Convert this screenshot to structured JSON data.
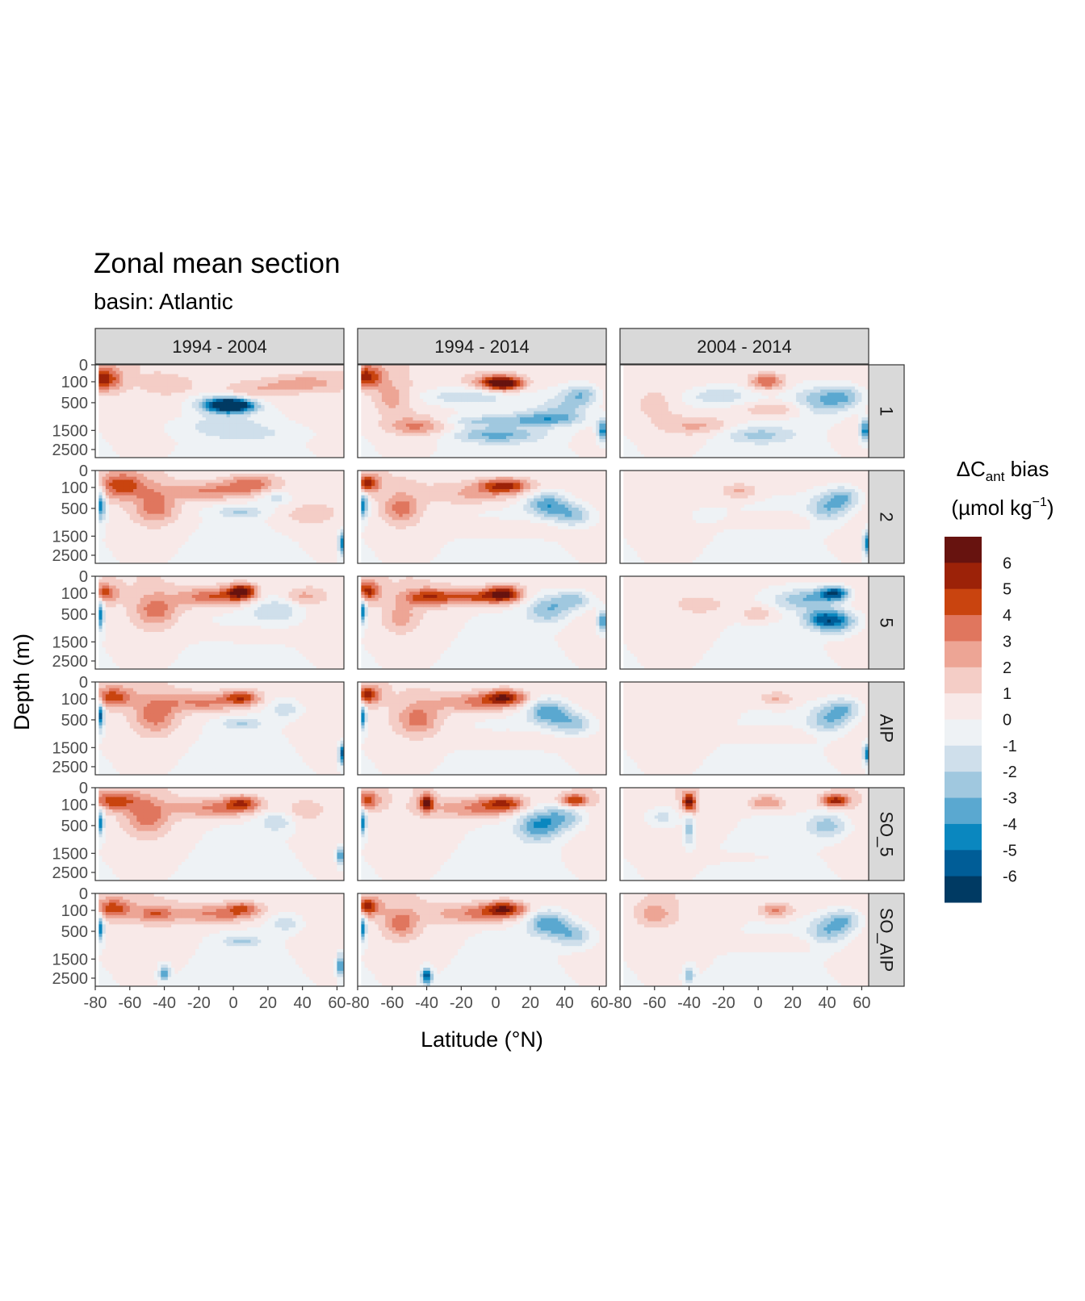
{
  "title": "Zonal mean section",
  "subtitle": "basin: Atlantic",
  "chart_data": {
    "type": "heatmap",
    "description_of_layout": "faceted grid: columns = period, rows = configuration",
    "columns": [
      "1994 - 2004",
      "1994 - 2014",
      "2004 - 2014"
    ],
    "rows": [
      "1",
      "2",
      "5",
      "AIP",
      "SO_5",
      "SO_AIP"
    ],
    "xlabel": "Latitude (°N)",
    "ylabel": "Depth (m)",
    "x_ticks": [
      -80,
      -60,
      -40,
      -20,
      0,
      20,
      40,
      60
    ],
    "xlim": [
      -80,
      64
    ],
    "y_ticks": [
      0,
      100,
      500,
      1500,
      2500
    ],
    "y_scale": "sqrt",
    "y_reversed": true,
    "ylim": [
      0,
      3000
    ],
    "legend": {
      "title_main": "ΔC",
      "title_sub": "ant",
      "title_suffix": " bias",
      "unit_pre": "(µmol kg",
      "unit_sup": "−1",
      "unit_post": ")",
      "position": "right",
      "labels": [
        "6",
        "5",
        "4",
        "3",
        "2",
        "1",
        "0",
        "-1",
        "-2",
        "-3",
        "-4",
        "-5",
        "-6"
      ],
      "colors": [
        "#67130f",
        "#9c2208",
        "#c9440f",
        "#e0765e",
        "#eda595",
        "#f4cdc6",
        "#f8e9e8",
        "#eef2f5",
        "#cfdfeb",
        "#a0c8df",
        "#5aa8d0",
        "#0a87bf",
        "#005d97",
        "#003a63"
      ]
    },
    "features": [
      {
        "col": 0,
        "row": 0,
        "blobs": [
          [
            -75,
            70,
            10,
            120,
            5
          ],
          [
            -5,
            550,
            16,
            200,
            -5
          ],
          [
            0,
            580,
            12,
            110,
            -6
          ],
          [
            10,
            250,
            20,
            200,
            2
          ],
          [
            40,
            120,
            20,
            80,
            2
          ],
          [
            -35,
            150,
            15,
            120,
            1
          ],
          [
            5,
            1600,
            35,
            250,
            -1
          ],
          [
            -10,
            1200,
            25,
            200,
            -1
          ]
        ]
      },
      {
        "col": 1,
        "row": 0,
        "blobs": [
          [
            -75,
            50,
            10,
            100,
            5
          ],
          [
            0,
            100,
            15,
            80,
            4
          ],
          [
            5,
            130,
            10,
            60,
            5
          ],
          [
            -20,
            350,
            25,
            150,
            -2
          ],
          [
            0,
            1700,
            25,
            250,
            -3
          ],
          [
            -60,
            400,
            10,
            400,
            2
          ],
          [
            -45,
            1300,
            18,
            300,
            3
          ],
          [
            -5,
            1100,
            30,
            100,
            -2
          ],
          [
            40,
            600,
            15,
            400,
            -2
          ],
          [
            50,
            300,
            10,
            200,
            -3
          ],
          [
            62,
            1500,
            3,
            400,
            -5
          ],
          [
            30,
            1000,
            20,
            200,
            -3
          ]
        ]
      },
      {
        "col": 2,
        "row": 0,
        "blobs": [
          [
            5,
            100,
            10,
            80,
            4
          ],
          [
            10,
            700,
            25,
            200,
            2
          ],
          [
            -35,
            1300,
            20,
            300,
            2
          ],
          [
            -60,
            600,
            10,
            400,
            1
          ],
          [
            -25,
            350,
            20,
            200,
            -2
          ],
          [
            35,
            500,
            15,
            400,
            -3
          ],
          [
            50,
            350,
            12,
            250,
            -3
          ],
          [
            0,
            1700,
            20,
            250,
            -2
          ],
          [
            62,
            1500,
            3,
            400,
            -5
          ]
        ]
      },
      {
        "col": 0,
        "row": 1,
        "blobs": [
          [
            -65,
            80,
            15,
            150,
            4
          ],
          [
            -45,
            500,
            12,
            400,
            3
          ],
          [
            -10,
            150,
            30,
            100,
            3
          ],
          [
            10,
            50,
            15,
            60,
            3
          ],
          [
            -77,
            400,
            3,
            400,
            -5
          ],
          [
            5,
            600,
            15,
            100,
            -2
          ],
          [
            25,
            250,
            10,
            100,
            -2
          ],
          [
            63,
            1800,
            2,
            500,
            -5
          ],
          [
            40,
            700,
            20,
            400,
            1
          ]
        ]
      },
      {
        "col": 1,
        "row": 1,
        "blobs": [
          [
            -75,
            60,
            8,
            80,
            5
          ],
          [
            -55,
            500,
            10,
            400,
            3
          ],
          [
            -10,
            200,
            25,
            150,
            2
          ],
          [
            5,
            80,
            15,
            60,
            5
          ],
          [
            30,
            400,
            12,
            250,
            -4
          ],
          [
            45,
            700,
            12,
            300,
            -3
          ],
          [
            -77,
            400,
            3,
            300,
            -5
          ],
          [
            10,
            1200,
            30,
            300,
            1
          ]
        ]
      },
      {
        "col": 2,
        "row": 1,
        "blobs": [
          [
            -10,
            150,
            10,
            80,
            2
          ],
          [
            40,
            500,
            12,
            400,
            -3
          ],
          [
            50,
            250,
            10,
            200,
            -3
          ],
          [
            10,
            900,
            30,
            200,
            1
          ],
          [
            -30,
            700,
            10,
            200,
            -1
          ],
          [
            63,
            1800,
            2,
            500,
            -5
          ]
        ]
      },
      {
        "col": 0,
        "row": 2,
        "blobs": [
          [
            -75,
            100,
            8,
            100,
            4
          ],
          [
            -45,
            400,
            12,
            400,
            3
          ],
          [
            -10,
            150,
            20,
            120,
            4
          ],
          [
            5,
            80,
            8,
            60,
            6
          ],
          [
            25,
            400,
            15,
            300,
            -2
          ],
          [
            40,
            150,
            10,
            80,
            2
          ],
          [
            -77,
            500,
            2,
            400,
            -5
          ],
          [
            10,
            1200,
            25,
            300,
            1
          ]
        ]
      },
      {
        "col": 1,
        "row": 2,
        "blobs": [
          [
            -75,
            80,
            8,
            100,
            5
          ],
          [
            -40,
            150,
            15,
            100,
            4
          ],
          [
            -10,
            150,
            20,
            100,
            4
          ],
          [
            5,
            100,
            10,
            80,
            5
          ],
          [
            30,
            400,
            12,
            300,
            -3
          ],
          [
            45,
            200,
            12,
            150,
            -3
          ],
          [
            -77,
            400,
            2,
            300,
            -5
          ],
          [
            -55,
            600,
            10,
            400,
            2
          ],
          [
            62,
            700,
            3,
            300,
            -5
          ]
        ]
      },
      {
        "col": 2,
        "row": 2,
        "blobs": [
          [
            20,
            200,
            12,
            150,
            -2
          ],
          [
            35,
            150,
            12,
            120,
            -3
          ],
          [
            45,
            100,
            8,
            60,
            -6
          ],
          [
            45,
            700,
            12,
            300,
            -5
          ],
          [
            35,
            600,
            10,
            250,
            -3
          ],
          [
            0,
            500,
            10,
            150,
            2
          ],
          [
            -30,
            300,
            15,
            150,
            1
          ]
        ]
      },
      {
        "col": 0,
        "row": 3,
        "blobs": [
          [
            -70,
            80,
            12,
            100,
            4
          ],
          [
            -45,
            400,
            12,
            450,
            3
          ],
          [
            -15,
            150,
            25,
            120,
            3
          ],
          [
            5,
            80,
            10,
            60,
            4
          ],
          [
            5,
            600,
            12,
            100,
            -2
          ],
          [
            30,
            250,
            10,
            150,
            -2
          ],
          [
            -77,
            400,
            2,
            300,
            -6
          ],
          [
            63,
            1800,
            2,
            400,
            -6
          ]
        ]
      },
      {
        "col": 1,
        "row": 3,
        "blobs": [
          [
            -75,
            60,
            8,
            80,
            5
          ],
          [
            -45,
            500,
            12,
            400,
            3
          ],
          [
            -10,
            150,
            25,
            120,
            3
          ],
          [
            5,
            80,
            12,
            60,
            5
          ],
          [
            30,
            300,
            12,
            250,
            -4
          ],
          [
            45,
            600,
            12,
            300,
            -3
          ],
          [
            -77,
            400,
            2,
            300,
            -5
          ],
          [
            10,
            1200,
            30,
            300,
            1
          ]
        ]
      },
      {
        "col": 2,
        "row": 3,
        "blobs": [
          [
            10,
            100,
            10,
            60,
            2
          ],
          [
            40,
            500,
            12,
            400,
            -3
          ],
          [
            50,
            250,
            10,
            200,
            -3
          ],
          [
            10,
            1000,
            30,
            200,
            1
          ],
          [
            63,
            1800,
            2,
            400,
            -5
          ]
        ]
      },
      {
        "col": 0,
        "row": 4,
        "blobs": [
          [
            -70,
            60,
            15,
            80,
            4
          ],
          [
            -50,
            300,
            12,
            400,
            3
          ],
          [
            -10,
            150,
            25,
            120,
            3
          ],
          [
            5,
            80,
            10,
            60,
            4
          ],
          [
            25,
            400,
            10,
            200,
            -2
          ],
          [
            40,
            200,
            10,
            150,
            1
          ],
          [
            -77,
            400,
            2,
            300,
            -5
          ],
          [
            62,
            1600,
            2,
            300,
            -5
          ]
        ]
      },
      {
        "col": 1,
        "row": 4,
        "blobs": [
          [
            -75,
            60,
            8,
            80,
            4
          ],
          [
            -40,
            80,
            4,
            80,
            6
          ],
          [
            -10,
            150,
            25,
            120,
            3
          ],
          [
            5,
            80,
            12,
            60,
            4
          ],
          [
            25,
            500,
            12,
            400,
            -4
          ],
          [
            40,
            300,
            12,
            250,
            -3
          ],
          [
            45,
            60,
            8,
            40,
            5
          ],
          [
            -77,
            400,
            2,
            300,
            -5
          ]
        ]
      },
      {
        "col": 2,
        "row": 4,
        "blobs": [
          [
            -40,
            80,
            4,
            100,
            6
          ],
          [
            -40,
            600,
            3,
            500,
            -3
          ],
          [
            -55,
            300,
            10,
            200,
            -2
          ],
          [
            5,
            80,
            10,
            60,
            3
          ],
          [
            40,
            500,
            12,
            300,
            -3
          ],
          [
            45,
            60,
            8,
            40,
            5
          ],
          [
            -20,
            1700,
            30,
            100,
            1
          ]
        ]
      },
      {
        "col": 0,
        "row": 5,
        "blobs": [
          [
            -70,
            80,
            12,
            100,
            4
          ],
          [
            -45,
            150,
            10,
            100,
            3
          ],
          [
            -10,
            150,
            25,
            120,
            3
          ],
          [
            5,
            80,
            10,
            60,
            3
          ],
          [
            5,
            800,
            12,
            100,
            -2
          ],
          [
            -40,
            2200,
            3,
            300,
            -4
          ],
          [
            -77,
            400,
            2,
            300,
            -5
          ],
          [
            62,
            1800,
            2,
            500,
            -5
          ],
          [
            30,
            300,
            10,
            150,
            -2
          ]
        ]
      },
      {
        "col": 1,
        "row": 5,
        "blobs": [
          [
            -75,
            60,
            8,
            80,
            5
          ],
          [
            -55,
            300,
            10,
            300,
            3
          ],
          [
            -10,
            150,
            25,
            120,
            3
          ],
          [
            5,
            80,
            12,
            60,
            5
          ],
          [
            30,
            300,
            12,
            250,
            -4
          ],
          [
            45,
            600,
            12,
            300,
            -3
          ],
          [
            -40,
            2400,
            3,
            350,
            -6
          ],
          [
            -77,
            400,
            2,
            300,
            -5
          ]
        ]
      },
      {
        "col": 2,
        "row": 5,
        "blobs": [
          [
            -60,
            150,
            10,
            150,
            2
          ],
          [
            10,
            100,
            10,
            60,
            3
          ],
          [
            40,
            500,
            12,
            400,
            -3
          ],
          [
            50,
            250,
            10,
            200,
            -3
          ],
          [
            -40,
            2300,
            3,
            400,
            -3
          ],
          [
            10,
            900,
            30,
            200,
            1
          ]
        ]
      }
    ]
  }
}
